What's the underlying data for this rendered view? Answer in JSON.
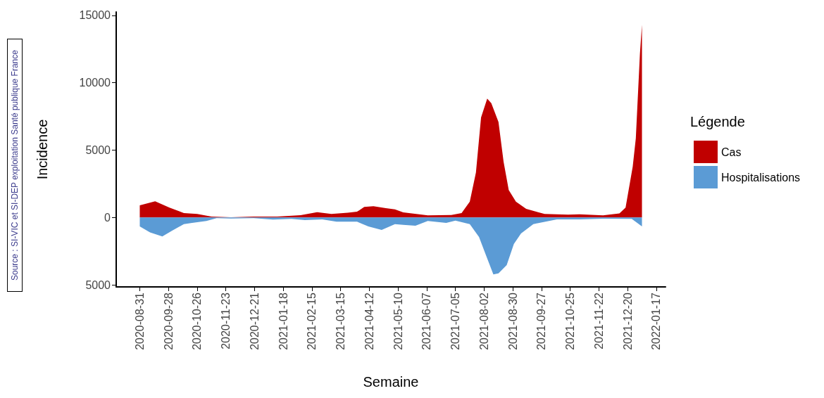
{
  "chart_data": {
    "type": "area",
    "xlabel": "Semaine",
    "ylabel": "Incidence",
    "legend_title": "Légende",
    "legend": "right",
    "grid": false,
    "annotations": [
      "Source : SI-VIC et SI-DEP exploitation Santé publique France"
    ],
    "xlim": [
      "2020-08-08",
      "2022-01-26"
    ],
    "xticks": [
      {
        "value": "2020-08-31",
        "label": "2020-08-31"
      },
      {
        "value": "2020-09-28",
        "label": "2020-09-28"
      },
      {
        "value": "2020-10-26",
        "label": "2020-10-26"
      },
      {
        "value": "2020-11-23",
        "label": "2020-11-23"
      },
      {
        "value": "2020-12-21",
        "label": "2020-12-21"
      },
      {
        "value": "2021-01-18",
        "label": "2021-01-18"
      },
      {
        "value": "2021-02-15",
        "label": "2021-02-15"
      },
      {
        "value": "2021-03-15",
        "label": "2021-03-15"
      },
      {
        "value": "2021-04-12",
        "label": "2021-04-12"
      },
      {
        "value": "2021-05-10",
        "label": "2021-05-10"
      },
      {
        "value": "2021-06-07",
        "label": "2021-06-07"
      },
      {
        "value": "2021-07-05",
        "label": "2021-07-05"
      },
      {
        "value": "2021-08-02",
        "label": "2021-08-02"
      },
      {
        "value": "2021-08-30",
        "label": "2021-08-30"
      },
      {
        "value": "2021-09-27",
        "label": "2021-09-27"
      },
      {
        "value": "2021-10-25",
        "label": "2021-10-25"
      },
      {
        "value": "2021-11-22",
        "label": "2021-11-22"
      },
      {
        "value": "2021-12-20",
        "label": "2021-12-20"
      },
      {
        "value": "2022-01-17",
        "label": "2022-01-17"
      }
    ],
    "ylim": [
      -5150,
      15250
    ],
    "yticks": [
      {
        "value": -5000,
        "label": "5000"
      },
      0,
      5000,
      10000,
      15000
    ],
    "series": [
      {
        "name": "Cas",
        "color": "#c00000",
        "x": [
          "2020-08-31",
          "2020-09-15",
          "2020-09-29",
          "2020-10-13",
          "2020-10-26",
          "2020-11-09",
          "2020-11-28",
          "2020-12-20",
          "2021-01-12",
          "2021-02-04",
          "2021-02-20",
          "2021-03-06",
          "2021-03-22",
          "2021-03-31",
          "2021-04-07",
          "2021-04-16",
          "2021-04-28",
          "2021-05-07",
          "2021-05-15",
          "2021-06-08",
          "2021-07-01",
          "2021-07-11",
          "2021-07-19",
          "2021-07-25",
          "2021-07-30",
          "2021-08-05",
          "2021-08-09",
          "2021-08-16",
          "2021-08-21",
          "2021-08-26",
          "2021-09-02",
          "2021-09-12",
          "2021-09-30",
          "2021-10-23",
          "2021-11-03",
          "2021-11-26",
          "2021-12-12",
          "2021-12-18",
          "2021-12-25",
          "2021-12-28",
          "2022-01-01",
          "2022-01-03"
        ],
        "values": [
          900,
          1200,
          730,
          330,
          260,
          70,
          20,
          70,
          70,
          170,
          400,
          260,
          350,
          430,
          780,
          840,
          700,
          600,
          380,
          160,
          190,
          330,
          1170,
          3340,
          7430,
          8820,
          8480,
          7080,
          4130,
          2040,
          1170,
          640,
          260,
          210,
          240,
          160,
          300,
          730,
          3780,
          5870,
          12130,
          14300
        ]
      },
      {
        "name": "Hospitalisations",
        "color": "#5b9bd5",
        "x": [
          "2020-08-31",
          "2020-09-10",
          "2020-09-22",
          "2020-10-01",
          "2020-10-13",
          "2020-10-21",
          "2020-11-04",
          "2020-11-14",
          "2020-11-28",
          "2020-12-20",
          "2021-01-08",
          "2021-01-26",
          "2021-02-08",
          "2021-02-25",
          "2021-03-11",
          "2021-03-31",
          "2021-04-11",
          "2021-04-24",
          "2021-05-07",
          "2021-05-15",
          "2021-05-27",
          "2021-06-08",
          "2021-06-26",
          "2021-07-05",
          "2021-07-19",
          "2021-07-28",
          "2021-08-04",
          "2021-08-11",
          "2021-08-16",
          "2021-08-24",
          "2021-08-31",
          "2021-09-07",
          "2021-09-19",
          "2021-10-12",
          "2021-11-03",
          "2021-11-26",
          "2021-12-24",
          "2021-12-31",
          "2022-01-03"
        ],
        "values": [
          -660,
          -1100,
          -1410,
          -1000,
          -490,
          -400,
          -260,
          -50,
          -70,
          -50,
          -160,
          -100,
          -190,
          -140,
          -310,
          -310,
          -660,
          -920,
          -490,
          -540,
          -610,
          -260,
          -400,
          -230,
          -490,
          -1440,
          -2840,
          -4230,
          -4140,
          -3530,
          -1970,
          -1180,
          -490,
          -140,
          -140,
          -90,
          -100,
          -490,
          -660
        ]
      }
    ]
  }
}
